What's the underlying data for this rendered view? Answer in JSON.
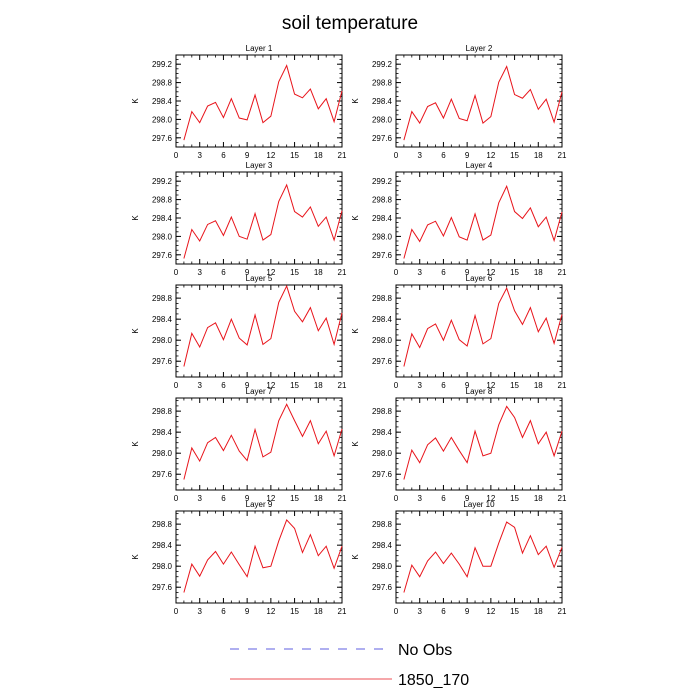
{
  "title": "soil temperature",
  "chart_data": {
    "type": "line",
    "title": "soil temperature",
    "xlabel": "",
    "ylabel": "K",
    "x": [
      1,
      2,
      3,
      4,
      5,
      6,
      7,
      8,
      9,
      10,
      11,
      12,
      13,
      14,
      15,
      16,
      17,
      18,
      19,
      20,
      21
    ],
    "xticks": [
      0,
      3,
      6,
      9,
      12,
      15,
      18,
      21
    ],
    "xlim": [
      0,
      21
    ],
    "legend": [
      {
        "label": "No Obs",
        "color": "#2b2bd6",
        "dash": true
      },
      {
        "label": "1850_170",
        "color": "#e8141b",
        "dash": false
      }
    ],
    "panels": [
      {
        "title": "Layer 1",
        "ylim": [
          297.4,
          299.4
        ],
        "yticks": [
          "297.6",
          "298.0",
          "298.4",
          "298.8",
          "299.2"
        ],
        "series": [
          {
            "name": "1850_170",
            "color": "#e8141b",
            "values": [
              297.55,
              298.17,
              297.93,
              298.29,
              298.37,
              298.04,
              298.45,
              298.03,
              297.99,
              298.53,
              297.93,
              298.07,
              298.82,
              299.17,
              298.55,
              298.47,
              298.66,
              298.23,
              298.45,
              297.95,
              298.62
            ]
          }
        ]
      },
      {
        "title": "Layer 2",
        "ylim": [
          297.4,
          299.4
        ],
        "yticks": [
          "297.6",
          "298.0",
          "298.4",
          "298.8",
          "299.2"
        ],
        "series": [
          {
            "name": "1850_170",
            "color": "#e8141b",
            "values": [
              297.55,
              298.17,
              297.92,
              298.28,
              298.36,
              298.03,
              298.44,
              298.02,
              297.97,
              298.52,
              297.92,
              298.06,
              298.81,
              299.15,
              298.54,
              298.46,
              298.65,
              298.22,
              298.44,
              297.94,
              298.6
            ]
          }
        ]
      },
      {
        "title": "Layer 3",
        "ylim": [
          297.4,
          299.4
        ],
        "yticks": [
          "297.6",
          "298.0",
          "298.4",
          "298.8",
          "299.2"
        ],
        "series": [
          {
            "name": "1850_170",
            "color": "#e8141b",
            "values": [
              297.52,
              298.15,
              297.9,
              298.26,
              298.34,
              298.02,
              298.42,
              298.0,
              297.94,
              298.5,
              297.92,
              298.04,
              298.76,
              299.12,
              298.54,
              298.42,
              298.64,
              298.22,
              298.42,
              297.92,
              298.56
            ]
          }
        ]
      },
      {
        "title": "Layer 4",
        "ylim": [
          297.4,
          299.4
        ],
        "yticks": [
          "297.6",
          "298.0",
          "298.4",
          "298.8",
          "299.2"
        ],
        "series": [
          {
            "name": "1850_170",
            "color": "#e8141b",
            "values": [
              297.52,
              298.15,
              297.89,
              298.25,
              298.33,
              298.01,
              298.41,
              297.99,
              297.92,
              298.49,
              297.92,
              298.03,
              298.73,
              299.09,
              298.54,
              298.39,
              298.62,
              298.21,
              298.42,
              297.91,
              298.53
            ]
          }
        ]
      },
      {
        "title": "Layer 5",
        "ylim": [
          297.3,
          299.05
        ],
        "yticks": [
          "297.6",
          "298.0",
          "298.4",
          "298.8"
        ],
        "series": [
          {
            "name": "1850_170",
            "color": "#e8141b",
            "values": [
              297.5,
              298.13,
              297.87,
              298.24,
              298.33,
              298.01,
              298.4,
              298.04,
              297.91,
              298.48,
              297.92,
              298.03,
              298.72,
              299.03,
              298.55,
              298.35,
              298.62,
              298.18,
              298.42,
              297.92,
              298.52
            ]
          }
        ]
      },
      {
        "title": "Layer 6",
        "ylim": [
          297.3,
          299.05
        ],
        "yticks": [
          "297.6",
          "298.0",
          "298.4",
          "298.8"
        ],
        "series": [
          {
            "name": "1850_170",
            "color": "#e8141b",
            "values": [
              297.5,
              298.12,
              297.86,
              298.22,
              298.31,
              298.0,
              298.38,
              298.01,
              297.89,
              298.47,
              297.93,
              298.03,
              298.7,
              298.99,
              298.56,
              298.3,
              298.62,
              298.16,
              298.42,
              297.94,
              298.49
            ]
          }
        ]
      },
      {
        "title": "Layer 7",
        "ylim": [
          297.3,
          299.05
        ],
        "yticks": [
          "297.6",
          "298.0",
          "298.4",
          "298.8"
        ],
        "series": [
          {
            "name": "1850_170",
            "color": "#e8141b",
            "values": [
              297.5,
              298.1,
              297.85,
              298.2,
              298.3,
              298.05,
              298.34,
              298.04,
              297.86,
              298.45,
              297.93,
              298.02,
              298.62,
              298.93,
              298.62,
              298.32,
              298.62,
              298.18,
              298.42,
              297.95,
              298.46
            ]
          }
        ]
      },
      {
        "title": "Layer 8",
        "ylim": [
          297.3,
          299.05
        ],
        "yticks": [
          "297.6",
          "298.0",
          "298.4",
          "298.8"
        ],
        "series": [
          {
            "name": "1850_170",
            "color": "#e8141b",
            "values": [
              297.5,
              298.06,
              297.82,
              298.16,
              298.29,
              298.04,
              298.3,
              298.05,
              297.82,
              298.42,
              297.95,
              298.0,
              298.54,
              298.89,
              298.68,
              298.3,
              298.62,
              298.18,
              298.4,
              297.95,
              298.42
            ]
          }
        ]
      },
      {
        "title": "Layer 9",
        "ylim": [
          297.3,
          299.05
        ],
        "yticks": [
          "297.6",
          "298.0",
          "298.4",
          "298.8"
        ],
        "series": [
          {
            "name": "1850_170",
            "color": "#e8141b",
            "values": [
              297.5,
              298.04,
              297.81,
              298.12,
              298.28,
              298.04,
              298.27,
              298.03,
              297.8,
              298.38,
              297.97,
              298.0,
              298.48,
              298.88,
              298.72,
              298.26,
              298.6,
              298.2,
              298.38,
              297.96,
              298.38
            ]
          }
        ]
      },
      {
        "title": "Layer 10",
        "ylim": [
          297.3,
          299.05
        ],
        "yticks": [
          "297.6",
          "298.0",
          "298.4",
          "298.8"
        ],
        "series": [
          {
            "name": "1850_170",
            "color": "#e8141b",
            "values": [
              297.5,
              298.02,
              297.8,
              298.1,
              298.27,
              298.05,
              298.25,
              298.04,
              297.8,
              298.35,
              298.0,
              298.0,
              298.44,
              298.84,
              298.74,
              298.25,
              298.58,
              298.22,
              298.38,
              297.98,
              298.36
            ]
          }
        ]
      }
    ]
  }
}
